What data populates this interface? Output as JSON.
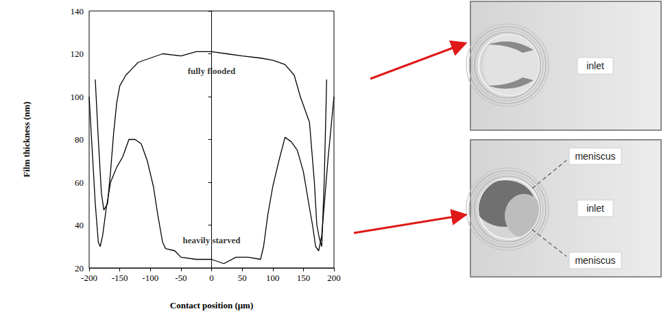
{
  "chart_data": {
    "type": "line",
    "xlabel": "Contact position (μm)",
    "ylabel": "Film thickness (nm)",
    "xlim": [
      -200,
      200
    ],
    "xticks": [
      -200,
      -150,
      -100,
      -50,
      0,
      50,
      100,
      150,
      200
    ],
    "ylim": [
      20,
      140
    ],
    "yticks": [
      20,
      40,
      60,
      80,
      100,
      120,
      140
    ],
    "grid": false,
    "series": [
      {
        "name": "fully flooded",
        "color": "#000000",
        "x": [
          -190,
          -185,
          -180,
          -176,
          -170,
          -165,
          -160,
          -155,
          -150,
          -140,
          -130,
          -120,
          -100,
          -80,
          -50,
          -25,
          0,
          25,
          50,
          80,
          100,
          120,
          135,
          145,
          155,
          160,
          168,
          172,
          176,
          180,
          184,
          187,
          188
        ],
        "values": [
          108,
          80,
          55,
          47,
          50,
          65,
          83,
          97,
          105,
          110,
          113,
          116,
          118,
          120,
          119,
          121,
          121,
          120,
          119,
          118,
          117,
          115,
          110,
          100,
          92,
          88,
          60,
          40,
          34,
          30,
          60,
          95,
          108
        ]
      },
      {
        "name": "heavily starved",
        "color": "#000000",
        "x": [
          -200,
          -195,
          -190,
          -185,
          -182,
          -178,
          -172,
          -165,
          -155,
          -145,
          -135,
          -125,
          -115,
          -105,
          -95,
          -88,
          -80,
          -75,
          -60,
          -50,
          -25,
          0,
          20,
          40,
          60,
          80,
          85,
          92,
          100,
          110,
          120,
          130,
          140,
          150,
          160,
          165,
          170,
          175,
          180,
          190,
          200
        ],
        "values": [
          100,
          75,
          50,
          32,
          30,
          35,
          48,
          60,
          67,
          72,
          80,
          80,
          78,
          70,
          58,
          45,
          32,
          29,
          28,
          25,
          24,
          24,
          22,
          25,
          25,
          24,
          30,
          45,
          58,
          70,
          81,
          79,
          75,
          65,
          48,
          40,
          30,
          28,
          35,
          70,
          100
        ]
      }
    ],
    "annotations": [
      {
        "text": "fully flooded",
        "x": 0,
        "y": 112
      },
      {
        "text": "heavily starved",
        "x": 0,
        "y": 33
      }
    ]
  },
  "photos": [
    {
      "labels": [
        "inlet"
      ]
    },
    {
      "labels": [
        "meniscus",
        "inlet",
        "meniscus"
      ]
    }
  ]
}
